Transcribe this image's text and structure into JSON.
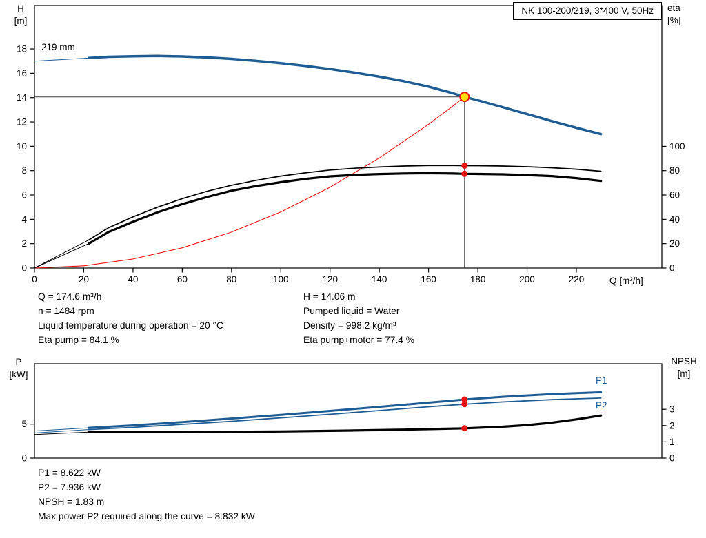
{
  "title_box": "NK 100-200/219, 3*400 V, 50Hz",
  "axis_labels": {
    "h_symbol": "H",
    "h_unit": "[m]",
    "eta_symbol": "eta",
    "eta_unit": "[%]",
    "q": "Q [m³/h]",
    "p_symbol": "P",
    "p_unit": "[kW]",
    "npsh_symbol": "NPSH",
    "npsh_unit": "[m]"
  },
  "curve_labels": {
    "impeller": "219 mm",
    "p1": "P1",
    "p2": "P2"
  },
  "info_top": {
    "left": [
      "Q = 174.6 m³/h",
      "n = 1484 rpm",
      "Liquid temperature during operation = 20 °C",
      "Eta pump = 84.1 %"
    ],
    "right": [
      "H = 14.06 m",
      "Pumped liquid = Water",
      "Density = 998.2 kg/m³",
      "Eta pump+motor = 77.4 %"
    ]
  },
  "info_bottom": [
    "P1 = 8.622 kW",
    "P2 = 7.936 kW",
    "NPSH = 1.83 m",
    "Max power P2 required along the curve = 8.832 kW"
  ],
  "colors": {
    "blue": "#1e5c96",
    "black": "#000000",
    "red": "#ee1111",
    "marker_yellow": "#ffe000",
    "duty_line": "#3a3a3a",
    "axis": "#000000",
    "text": "#000000"
  },
  "chart_data": [
    {
      "type": "line",
      "title": "NK 100-200/219, 3*400 V, 50Hz",
      "xlabel": "Q [m³/h]",
      "ylabel_left": "H [m]",
      "ylabel_right": "eta [%]",
      "grid": false,
      "axes": {
        "q_ticks": [
          0,
          20,
          40,
          60,
          80,
          100,
          120,
          140,
          160,
          180,
          200,
          220
        ],
        "h_ticks": [
          0,
          2,
          4,
          6,
          8,
          10,
          12,
          14,
          16,
          18
        ],
        "eta_ticks": [
          0,
          20,
          40,
          60,
          80,
          100
        ],
        "q_range": [
          0,
          254.7
        ],
        "h_range": [
          0,
          21.6
        ],
        "eta_100_equals_h": 10
      },
      "duty_point": {
        "q": 174.6,
        "h": 14.06,
        "eta_pump": 84.1,
        "eta_pump_motor": 77.4
      },
      "series": [
        {
          "name": "system-curve",
          "axis": "H",
          "color": "red",
          "width": 1.1,
          "points": [
            [
              0,
              0
            ],
            [
              20,
              0.18
            ],
            [
              40,
              0.74
            ],
            [
              60,
              1.66
            ],
            [
              80,
              2.95
            ],
            [
              100,
              4.61
            ],
            [
              120,
              6.64
            ],
            [
              140,
              9.04
            ],
            [
              160,
              11.81
            ],
            [
              170,
              13.33
            ],
            [
              174.6,
              14.06
            ]
          ]
        },
        {
          "name": "head-curve-leadin",
          "axis": "H",
          "color": "blue",
          "width": 1,
          "points": [
            [
              0,
              17.0
            ],
            [
              22,
              17.25
            ]
          ]
        },
        {
          "name": "eta-pump-curve-leadin",
          "axis": "ETA",
          "color": "black",
          "width": 1,
          "points": [
            [
              0,
              0
            ],
            [
              22,
              23
            ]
          ]
        },
        {
          "name": "eta-pump-motor-curve-leadin",
          "axis": "ETA",
          "color": "black",
          "width": 1,
          "points": [
            [
              0,
              0
            ],
            [
              22,
              20
            ]
          ]
        },
        {
          "name": "eta-pump-curve",
          "axis": "ETA",
          "color": "black",
          "width": 1.7,
          "points": [
            [
              22,
              23
            ],
            [
              30,
              33
            ],
            [
              40,
              42
            ],
            [
              50,
              50
            ],
            [
              60,
              57
            ],
            [
              70,
              63
            ],
            [
              80,
              68
            ],
            [
              90,
              72
            ],
            [
              100,
              75.5
            ],
            [
              110,
              78.2
            ],
            [
              120,
              80.5
            ],
            [
              130,
              82
            ],
            [
              140,
              83
            ],
            [
              150,
              83.8
            ],
            [
              160,
              84.2
            ],
            [
              170,
              84.2
            ],
            [
              174.6,
              84.1
            ],
            [
              180,
              84.1
            ],
            [
              190,
              83.8
            ],
            [
              200,
              83.2
            ],
            [
              210,
              82.4
            ],
            [
              220,
              81.2
            ],
            [
              230,
              79.5
            ]
          ]
        },
        {
          "name": "eta-pump-motor-curve",
          "axis": "ETA",
          "color": "black",
          "width": 3.2,
          "points": [
            [
              22,
              20
            ],
            [
              30,
              29.5
            ],
            [
              40,
              38
            ],
            [
              50,
              45.8
            ],
            [
              60,
              52.5
            ],
            [
              70,
              58.3
            ],
            [
              80,
              63.5
            ],
            [
              90,
              67.3
            ],
            [
              100,
              70.5
            ],
            [
              110,
              73.2
            ],
            [
              120,
              75.3
            ],
            [
              130,
              76.5
            ],
            [
              140,
              77.2
            ],
            [
              150,
              77.7
            ],
            [
              160,
              77.9
            ],
            [
              170,
              77.6
            ],
            [
              174.6,
              77.4
            ],
            [
              180,
              77.3
            ],
            [
              190,
              77
            ],
            [
              200,
              76.4
            ],
            [
              210,
              75.5
            ],
            [
              220,
              73.8
            ],
            [
              230,
              71.5
            ]
          ]
        },
        {
          "name": "head-curve",
          "axis": "H",
          "color": "blue",
          "width": 3.5,
          "points": [
            [
              22,
              17.25
            ],
            [
              30,
              17.35
            ],
            [
              40,
              17.4
            ],
            [
              50,
              17.42
            ],
            [
              60,
              17.38
            ],
            [
              70,
              17.3
            ],
            [
              80,
              17.18
            ],
            [
              90,
              17.02
            ],
            [
              100,
              16.83
            ],
            [
              110,
              16.6
            ],
            [
              120,
              16.35
            ],
            [
              130,
              16.05
            ],
            [
              140,
              15.72
            ],
            [
              150,
              15.35
            ],
            [
              160,
              14.9
            ],
            [
              170,
              14.35
            ],
            [
              174.6,
              14.06
            ],
            [
              180,
              13.78
            ],
            [
              190,
              13.22
            ],
            [
              200,
              12.65
            ],
            [
              210,
              12.07
            ],
            [
              220,
              11.52
            ],
            [
              230,
              11.0
            ]
          ]
        }
      ]
    },
    {
      "type": "line",
      "ylabel_left": "P [kW]",
      "ylabel_right": "NPSH [m]",
      "grid": false,
      "axes": {
        "p_ticks": [
          0,
          5
        ],
        "npsh_ticks": [
          0,
          1,
          2,
          3
        ],
        "q_range": [
          0,
          254.7
        ],
        "p_range": [
          0,
          13.9
        ],
        "npsh_range": [
          0,
          5.8
        ]
      },
      "duty_point": {
        "q": 174.6,
        "p1": 8.622,
        "p2": 7.936,
        "npsh": 1.83
      },
      "max_power_p2_along_curve_kw": 8.832,
      "series": [
        {
          "name": "p1-curve-leadin",
          "axis": "P",
          "color": "blue",
          "width": 1,
          "points": [
            [
              0,
              4.0
            ],
            [
              22,
              4.45
            ]
          ]
        },
        {
          "name": "p2-curve-leadin",
          "axis": "P",
          "color": "blue",
          "width": 1,
          "points": [
            [
              0,
              3.7
            ],
            [
              22,
              4.2
            ]
          ]
        },
        {
          "name": "npsh-curve-leadin",
          "axis": "NPSH",
          "color": "black",
          "width": 1,
          "points": [
            [
              0,
              1.45
            ],
            [
              22,
              1.6
            ]
          ]
        },
        {
          "name": "p2-curve",
          "axis": "P",
          "color": "blue",
          "width": 1.8,
          "points": [
            [
              22,
              4.2
            ],
            [
              40,
              4.52
            ],
            [
              60,
              4.97
            ],
            [
              80,
              5.42
            ],
            [
              100,
              5.92
            ],
            [
              120,
              6.45
            ],
            [
              140,
              7.0
            ],
            [
              160,
              7.56
            ],
            [
              174.6,
              7.936
            ],
            [
              190,
              8.27
            ],
            [
              210,
              8.6
            ],
            [
              230,
              8.832
            ]
          ]
        },
        {
          "name": "p1-curve",
          "axis": "P",
          "color": "blue",
          "width": 3,
          "points": [
            [
              22,
              4.45
            ],
            [
              40,
              4.82
            ],
            [
              60,
              5.3
            ],
            [
              80,
              5.82
            ],
            [
              100,
              6.36
            ],
            [
              120,
              6.95
            ],
            [
              140,
              7.55
            ],
            [
              160,
              8.16
            ],
            [
              174.6,
              8.622
            ],
            [
              190,
              9.02
            ],
            [
              210,
              9.42
            ],
            [
              230,
              9.7
            ]
          ]
        },
        {
          "name": "npsh-curve",
          "axis": "NPSH",
          "color": "black",
          "width": 3.2,
          "points": [
            [
              22,
              1.6
            ],
            [
              60,
              1.6
            ],
            [
              100,
              1.64
            ],
            [
              130,
              1.7
            ],
            [
              150,
              1.75
            ],
            [
              174.6,
              1.83
            ],
            [
              190,
              1.93
            ],
            [
              200,
              2.03
            ],
            [
              210,
              2.18
            ],
            [
              220,
              2.38
            ],
            [
              230,
              2.62
            ]
          ]
        }
      ]
    }
  ]
}
